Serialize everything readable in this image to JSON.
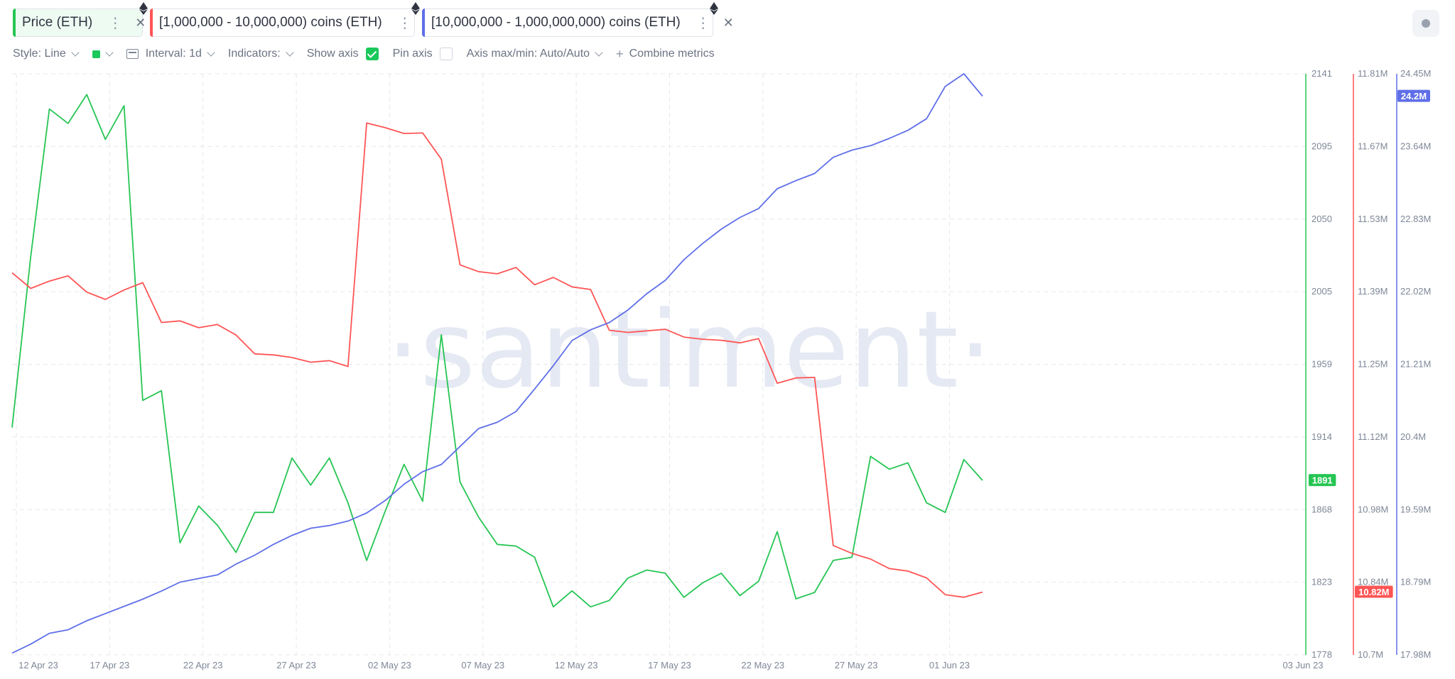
{
  "tabs": [
    {
      "label": "Price (ETH)",
      "color": "#26c553",
      "bg": "#eefbf2"
    },
    {
      "label": "[1,000,000 - 10,000,000) coins (ETH)",
      "color": "#ff5555",
      "bg": "#ffffff"
    },
    {
      "label": "[10,000,000 - 1,000,000,000) coins (ETH)",
      "color": "#5f6fe8",
      "bg": "#ffffff"
    }
  ],
  "toolbar": {
    "style": "Style: Line",
    "color_swatch": "#1ac85b",
    "interval": "Interval: 1d",
    "indicators": "Indicators:",
    "show_axis": "Show axis",
    "show_axis_checked": true,
    "pin_axis": "Pin axis",
    "pin_axis_checked": false,
    "axis_maxmin": "Axis max/min: Auto/Auto",
    "combine": "Combine metrics"
  },
  "watermark": "·santiment·",
  "chart_data": {
    "type": "line",
    "x": [
      "12 Apr 23",
      "13 Apr 23",
      "14 Apr 23",
      "15 Apr 23",
      "16 Apr 23",
      "17 Apr 23",
      "18 Apr 23",
      "19 Apr 23",
      "20 Apr 23",
      "21 Apr 23",
      "22 Apr 23",
      "23 Apr 23",
      "24 Apr 23",
      "25 Apr 23",
      "26 Apr 23",
      "27 Apr 23",
      "28 Apr 23",
      "29 Apr 23",
      "30 Apr 23",
      "01 May 23",
      "02 May 23",
      "03 May 23",
      "04 May 23",
      "05 May 23",
      "06 May 23",
      "07 May 23",
      "08 May 23",
      "09 May 23",
      "10 May 23",
      "11 May 23",
      "12 May 23",
      "13 May 23",
      "14 May 23",
      "15 May 23",
      "16 May 23",
      "17 May 23",
      "18 May 23",
      "19 May 23",
      "20 May 23",
      "21 May 23",
      "22 May 23",
      "23 May 23",
      "24 May 23",
      "25 May 23",
      "26 May 23",
      "27 May 23",
      "28 May 23",
      "29 May 23",
      "30 May 23",
      "31 May 23",
      "01 Jun 23",
      "02 Jun 23",
      "03 Jun 23"
    ],
    "x_ticks": [
      "12 Apr 23",
      "17 Apr 23",
      "22 Apr 23",
      "27 Apr 23",
      "02 May 23",
      "07 May 23",
      "12 May 23",
      "17 May 23",
      "22 May 23",
      "27 May 23",
      "01 Jun 23",
      "03 Jun 23"
    ],
    "grid": true,
    "series": [
      {
        "name": "Price (ETH)",
        "color": "#26c553",
        "axis": "left",
        "last_value_label": "1891",
        "ylim": [
          1778,
          2141
        ],
        "ticks": [
          "2141",
          "2095",
          "2050",
          "2005",
          "1959",
          "1914",
          "1868",
          "1823",
          "1778"
        ],
        "values": [
          1920,
          2027,
          2119,
          2110,
          2128,
          2100,
          2121,
          1937,
          1943,
          1848,
          1871,
          1859,
          1842,
          1867,
          1867,
          1901,
          1884,
          1901,
          1873,
          1837,
          1868,
          1897,
          1874,
          1978,
          1886,
          1864,
          1847,
          1846,
          1839,
          1808,
          1818,
          1808,
          1812,
          1826,
          1831,
          1829,
          1814,
          1823,
          1829,
          1815,
          1824,
          1855,
          1813,
          1817,
          1837,
          1839,
          1902,
          1894,
          1898,
          1873,
          1867,
          1900,
          1887
        ]
      },
      {
        "name": "[1,000,000 - 10,000,000) coins (ETH)",
        "color": "#ff5555",
        "axis": "middle",
        "last_value_label": "10.82M",
        "ylim": [
          10700000,
          11810000
        ],
        "ticks": [
          "11.81M",
          "11.67M",
          "11.53M",
          "11.39M",
          "11.25M",
          "11.12M",
          "10.98M",
          "10.84M",
          "10.7M"
        ],
        "values": [
          11430000,
          11400000,
          11414000,
          11424000,
          11393000,
          11379000,
          11397000,
          11411000,
          11335000,
          11338000,
          11325000,
          11331000,
          11311000,
          11275000,
          11273000,
          11268000,
          11259000,
          11262000,
          11251000,
          11716000,
          11707000,
          11696000,
          11697000,
          11647000,
          11445000,
          11432000,
          11428000,
          11440000,
          11407000,
          11421000,
          11403000,
          11398000,
          11320000,
          11316000,
          11319000,
          11322000,
          11307000,
          11303000,
          11301000,
          11296000,
          11304000,
          11219000,
          11229000,
          11230000,
          10909000,
          10894000,
          10883000,
          10865000,
          10860000,
          10847000,
          10815000,
          10810000,
          10820000
        ]
      },
      {
        "name": "[10,000,000 - 1,000,000,000) coins (ETH)",
        "color": "#5f6fe8",
        "axis": "right",
        "last_value_label": "24.2M",
        "ylim": [
          17980000,
          24450000
        ],
        "ticks": [
          "24.45M",
          "23.64M",
          "22.83M",
          "22.02M",
          "21.21M",
          "20.4M",
          "19.59M",
          "18.79M",
          "17.98M"
        ],
        "values": [
          18000000,
          18100000,
          18220000,
          18260000,
          18360000,
          18440000,
          18520000,
          18600000,
          18690000,
          18790000,
          18830000,
          18870000,
          18990000,
          19090000,
          19210000,
          19310000,
          19390000,
          19420000,
          19470000,
          19560000,
          19700000,
          19880000,
          20020000,
          20100000,
          20300000,
          20500000,
          20570000,
          20690000,
          20940000,
          21200000,
          21480000,
          21600000,
          21680000,
          21820000,
          22000000,
          22150000,
          22380000,
          22560000,
          22720000,
          22850000,
          22950000,
          23170000,
          23260000,
          23340000,
          23520000,
          23600000,
          23650000,
          23730000,
          23820000,
          23950000,
          24310000,
          24450000,
          24200000
        ]
      }
    ]
  }
}
